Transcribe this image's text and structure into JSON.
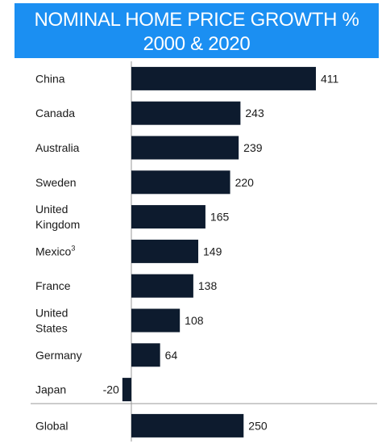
{
  "title_lines": [
    "NOMINAL HOME PRICE GROWTH %",
    "2000 & 2020"
  ],
  "colors": {
    "title_background": "#1b8ff2",
    "title_text": "#ffffff",
    "bar": "#0d1b2e",
    "text": "#1a1a1a",
    "axis": "#999999"
  },
  "chart_data": {
    "type": "bar",
    "orientation": "horizontal",
    "title": "NOMINAL HOME PRICE GROWTH % 2000 & 2020",
    "categories": [
      {
        "lines": [
          "China"
        ],
        "sup": ""
      },
      {
        "lines": [
          "Canada"
        ],
        "sup": ""
      },
      {
        "lines": [
          "Australia"
        ],
        "sup": ""
      },
      {
        "lines": [
          "Sweden"
        ],
        "sup": ""
      },
      {
        "lines": [
          "United",
          "Kingdom"
        ],
        "sup": ""
      },
      {
        "lines": [
          "Mexico"
        ],
        "sup": "3"
      },
      {
        "lines": [
          "France"
        ],
        "sup": ""
      },
      {
        "lines": [
          "United",
          "States"
        ],
        "sup": ""
      },
      {
        "lines": [
          "Germany"
        ],
        "sup": ""
      },
      {
        "lines": [
          "Japan"
        ],
        "sup": ""
      },
      {
        "lines": [
          "Global"
        ],
        "sup": ""
      }
    ],
    "values": [
      411,
      243,
      239,
      220,
      165,
      149,
      138,
      108,
      64,
      -20,
      250
    ],
    "value_labels": [
      "411",
      "243",
      "239",
      "220",
      "165",
      "149",
      "138",
      "108",
      "64",
      "-20",
      "250"
    ],
    "xlim": [
      -20,
      411
    ],
    "separator_before_category_index": 10,
    "grid": false,
    "legend": "none"
  }
}
